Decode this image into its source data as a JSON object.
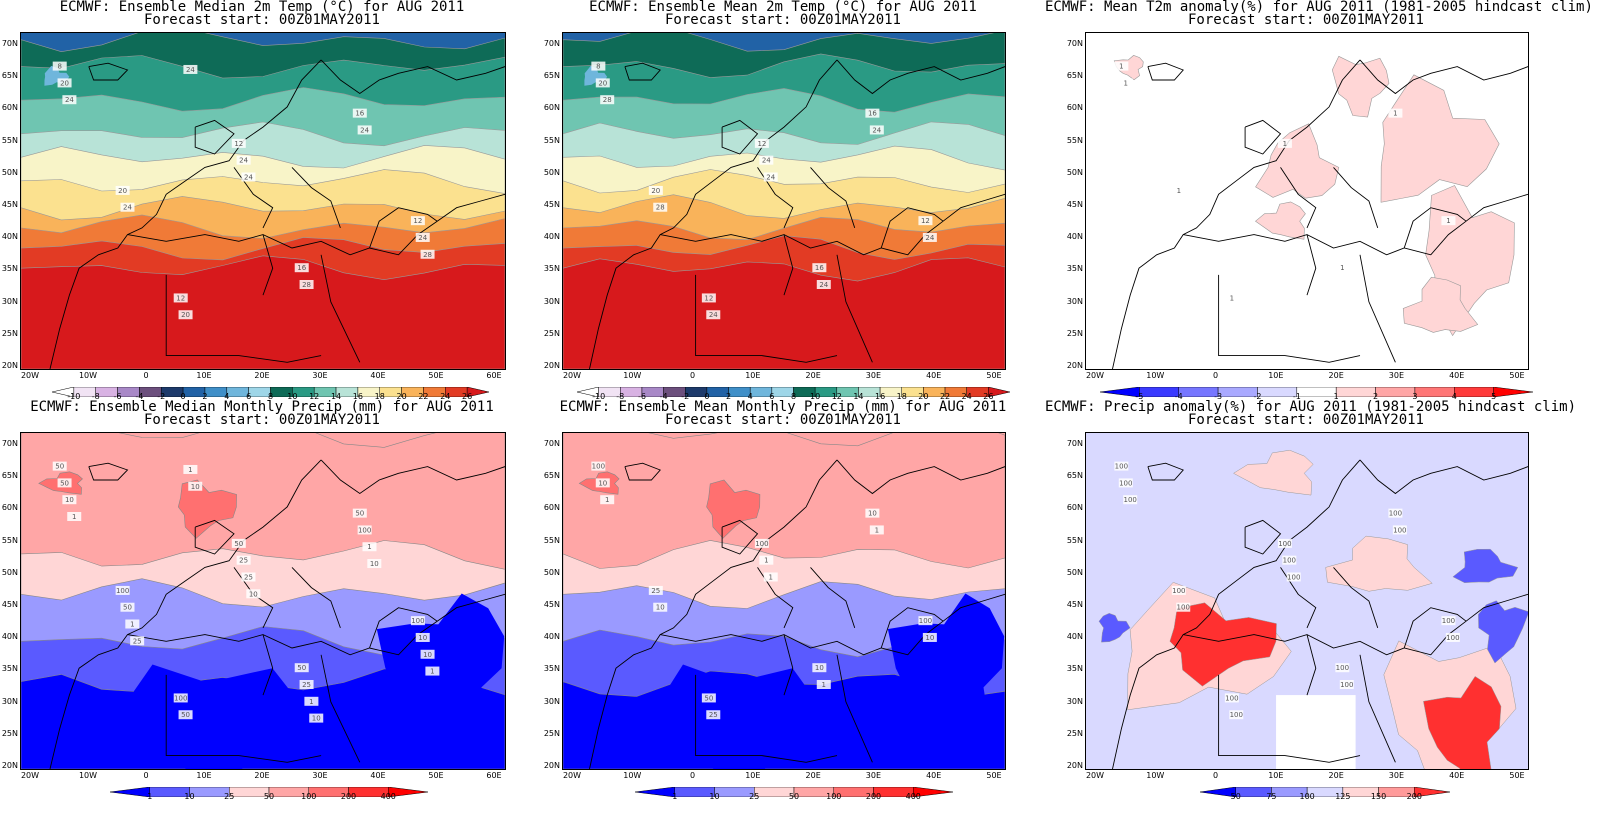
{
  "panels": [
    {
      "id": "p1",
      "title1": "ECMWF: Ensemble Median 2m Temp (°C) for AUG 2011",
      "title2": "Forecast start: 00Z01MAY2011",
      "lons": [
        "20W",
        "10W",
        "0",
        "10E",
        "20E",
        "30E",
        "40E",
        "50E",
        "60E"
      ],
      "lats": [
        "70N",
        "65N",
        "60N",
        "55N",
        "50N",
        "45N",
        "40N",
        "35N",
        "30N",
        "25N",
        "20N"
      ],
      "colorbar": {
        "labels": [
          "-10",
          "-8",
          "-6",
          "-4",
          "-2",
          "0",
          "2",
          "4",
          "6",
          "8",
          "10",
          "12",
          "14",
          "16",
          "18",
          "20",
          "22",
          "24",
          "26"
        ],
        "colors": [
          "#ffffff",
          "#f1e3f4",
          "#d8b2e3",
          "#a888c7",
          "#6c4f7d",
          "#1d3a6b",
          "#2162a6",
          "#3f8fc8",
          "#6fb6dc",
          "#9ed6e8",
          "#0e6b57",
          "#2a9a84",
          "#6fc5b1",
          "#b8e3d7",
          "#f8f4c8",
          "#fbe18f",
          "#f9b35a",
          "#f07a37",
          "#e23b24",
          "#d7191c"
        ]
      },
      "contour_labels": [
        "8",
        "12",
        "12",
        "12",
        "16",
        "20",
        "16",
        "20",
        "24",
        "24",
        "20",
        "24",
        "24",
        "28",
        "24",
        "24",
        "28",
        "24"
      ]
    },
    {
      "id": "p2",
      "title1": "ECMWF: Ensemble Mean 2m Temp (°C) for AUG 2011",
      "title2": "Forecast start: 00Z01MAY2011",
      "lons": [
        "20W",
        "10W",
        "0",
        "10E",
        "20E",
        "30E",
        "40E",
        "50E"
      ],
      "lats": [
        "70N",
        "65N",
        "60N",
        "55N",
        "50N",
        "45N",
        "40N",
        "35N",
        "30N",
        "25N",
        "20N"
      ],
      "colorbar": {
        "labels": [
          "-10",
          "-8",
          "-6",
          "-4",
          "-2",
          "0",
          "2",
          "4",
          "6",
          "8",
          "10",
          "12",
          "14",
          "16",
          "18",
          "20",
          "22",
          "24",
          "26"
        ],
        "colors": [
          "#ffffff",
          "#f1e3f4",
          "#d8b2e3",
          "#a888c7",
          "#6c4f7d",
          "#1d3a6b",
          "#2162a6",
          "#3f8fc8",
          "#6fb6dc",
          "#9ed6e8",
          "#0e6b57",
          "#2a9a84",
          "#6fc5b1",
          "#b8e3d7",
          "#f8f4c8",
          "#fbe18f",
          "#f9b35a",
          "#f07a37",
          "#e23b24",
          "#d7191c"
        ]
      },
      "contour_labels": [
        "8",
        "12",
        "12",
        "12",
        "16",
        "20",
        "16",
        "20",
        "24",
        "24",
        "24",
        "24",
        "28",
        "24",
        "28",
        "24"
      ]
    },
    {
      "id": "p3",
      "title1": "ECMWF: Mean T2m anomaly(%) for AUG 2011 (1981-2005 hindcast clim)",
      "title2": "Forecast start: 00Z01MAY2011",
      "lons": [
        "20W",
        "10W",
        "0",
        "10E",
        "20E",
        "30E",
        "40E",
        "50E"
      ],
      "lats": [
        "70N",
        "65N",
        "60N",
        "55N",
        "50N",
        "45N",
        "40N",
        "35N",
        "30N",
        "25N",
        "20N"
      ],
      "colorbar": {
        "labels": [
          "-5",
          "-4",
          "-3",
          "-2",
          "-1",
          "1",
          "2",
          "3",
          "4",
          "5"
        ],
        "colors": [
          "#0000ff",
          "#3a3aff",
          "#7676ff",
          "#a9a9ff",
          "#d9d9ff",
          "#ffffff",
          "#ffd6d6",
          "#ffa6a6",
          "#ff7676",
          "#ff3a3a",
          "#ff0000"
        ]
      },
      "contour_labels": [
        "1",
        "1",
        "1",
        "1",
        "1",
        "1",
        "1",
        "1"
      ]
    },
    {
      "id": "p4",
      "title1": "ECMWF: Ensemble Median Monthly Precip (mm) for AUG 2011",
      "title2": "Forecast start: 00Z01MAY2011",
      "lons": [
        "20W",
        "10W",
        "0",
        "10E",
        "20E",
        "30E",
        "40E",
        "50E",
        "60E"
      ],
      "lats": [
        "70N",
        "65N",
        "60N",
        "55N",
        "50N",
        "45N",
        "40N",
        "35N",
        "30N",
        "25N",
        "20N"
      ],
      "colorbar": {
        "labels": [
          "1",
          "10",
          "25",
          "50",
          "100",
          "200",
          "400"
        ],
        "colors": [
          "#0000ff",
          "#5a5aff",
          "#9a9aff",
          "#ffd6d6",
          "#ffa6a6",
          "#ff7070",
          "#ff3030",
          "#ff0000"
        ]
      },
      "contour_labels": [
        "50",
        "50",
        "100",
        "100",
        "50",
        "100",
        "50",
        "50",
        "25",
        "10",
        "50",
        "100",
        "50",
        "25",
        "10",
        "25",
        "10",
        "1",
        "1",
        "1",
        "1",
        "1",
        "10",
        "1",
        "10",
        "10",
        "25",
        "10"
      ]
    },
    {
      "id": "p5",
      "title1": "ECMWF: Ensemble Mean Monthly Precip (mm) for AUG 2011",
      "title2": "Forecast start: 00Z01MAY2011",
      "lons": [
        "20W",
        "10W",
        "0",
        "10E",
        "20E",
        "30E",
        "40E",
        "50E"
      ],
      "lats": [
        "70N",
        "65N",
        "60N",
        "55N",
        "50N",
        "45N",
        "40N",
        "35N",
        "30N",
        "25N",
        "20N"
      ],
      "colorbar": {
        "labels": [
          "1",
          "10",
          "25",
          "50",
          "100",
          "200",
          "400"
        ],
        "colors": [
          "#0000ff",
          "#5a5aff",
          "#9a9aff",
          "#ffd6d6",
          "#ffa6a6",
          "#ff7070",
          "#ff3030",
          "#ff0000"
        ]
      },
      "contour_labels": [
        "100",
        "100",
        "100",
        "50",
        "10",
        "25",
        "10",
        "10",
        "1",
        "10",
        "25",
        "1",
        "10",
        "1",
        "1",
        "1"
      ]
    },
    {
      "id": "p6",
      "title1": "ECMWF: Precip anomaly(%) for AUG 2011 (1981-2005 hindcast clim)",
      "title2": "Forecast start: 00Z01MAY2011",
      "lons": [
        "20W",
        "10W",
        "0",
        "10E",
        "20E",
        "30E",
        "40E",
        "50E"
      ],
      "lats": [
        "70N",
        "65N",
        "60N",
        "55N",
        "50N",
        "45N",
        "40N",
        "35N",
        "30N",
        "25N",
        "20N"
      ],
      "colorbar": {
        "labels": [
          "50",
          "75",
          "100",
          "125",
          "150",
          "200"
        ],
        "colors": [
          "#0000ff",
          "#5a5aff",
          "#9a9aff",
          "#d9d9ff",
          "#ffd6d6",
          "#ff9a9a",
          "#ff3030"
        ]
      },
      "contour_labels": [
        "100",
        "100",
        "100",
        "100",
        "100",
        "100",
        "100",
        "100",
        "100",
        "100",
        "100",
        "100",
        "100",
        "100",
        "100",
        "100"
      ]
    }
  ]
}
